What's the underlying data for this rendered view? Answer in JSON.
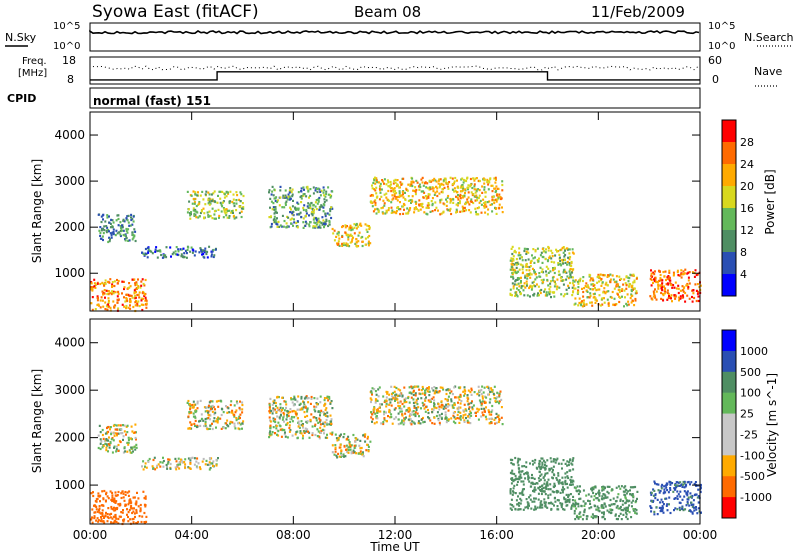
{
  "header": {
    "station": "Syowa East (fitACF)",
    "beam": "Beam 08",
    "date": "11/Feb/2009"
  },
  "top_panels": {
    "nsky_label": "N.Sky",
    "nsky_ticks": [
      "10^5",
      "10^0"
    ],
    "nsearch_label": "N.Search",
    "nsearch_ticks": [
      "10^5",
      "10^0"
    ],
    "freq_label_1": "Freq.",
    "freq_label_2": "[MHz]",
    "freq_ticks": [
      "18",
      "8"
    ],
    "nave_label": "Nave",
    "nave_ticks": [
      "60",
      "0"
    ],
    "cpid_label": "CPID",
    "cpid_value": "normal (fast) 151"
  },
  "colors": {
    "power_scale": [
      "#0000ff",
      "#2a4fb3",
      "#4f8e63",
      "#63b85a",
      "#d8d81e",
      "#ffaa00",
      "#ff6a00",
      "#ff0000"
    ],
    "velocity_scale": [
      "#ff0000",
      "#ff6a00",
      "#ffaa00",
      "#c8c8c8",
      "#c8c8c8",
      "#63b85a",
      "#4f8e63",
      "#2a4fb3",
      "#0000ff"
    ],
    "ground_scatter": "#bcbcbc"
  },
  "chart_data": [
    {
      "type": "heatmap",
      "panel": "power",
      "ylabel": "Slant Range [km]",
      "ylim": [
        180,
        4500
      ],
      "y_ticks": [
        "1000",
        "2000",
        "3000",
        "4000"
      ],
      "x_ticks": [
        "00:00",
        "04:00",
        "08:00",
        "12:00",
        "16:00",
        "20:00",
        "00:00"
      ],
      "colorbar_label": "Power [dB]",
      "colorbar_ticks": [
        "4",
        "8",
        "12",
        "16",
        "20",
        "24",
        "28"
      ],
      "echo_regions": [
        {
          "t": [
            0.0,
            2.2
          ],
          "r": [
            200,
            900
          ],
          "value": 24
        },
        {
          "t": [
            0.3,
            1.8
          ],
          "r": [
            1700,
            2300
          ],
          "value": 10
        },
        {
          "t": [
            2.0,
            5.0
          ],
          "r": [
            1350,
            1600
          ],
          "value": 8
        },
        {
          "t": [
            3.8,
            6.0
          ],
          "r": [
            2200,
            2800
          ],
          "value": 16
        },
        {
          "t": [
            7.0,
            9.5
          ],
          "r": [
            2000,
            2900
          ],
          "value": 12
        },
        {
          "t": [
            9.5,
            11.0
          ],
          "r": [
            1600,
            2100
          ],
          "value": 20
        },
        {
          "t": [
            11.0,
            16.2
          ],
          "r": [
            2300,
            3100
          ],
          "value": 20
        },
        {
          "t": [
            16.5,
            19.0
          ],
          "r": [
            500,
            1600
          ],
          "value": 16
        },
        {
          "t": [
            19.0,
            21.5
          ],
          "r": [
            300,
            1000
          ],
          "value": 20
        },
        {
          "t": [
            22.0,
            24.0
          ],
          "r": [
            400,
            1100
          ],
          "value": 26
        }
      ]
    },
    {
      "type": "heatmap",
      "panel": "velocity",
      "ylabel": "Slant Range [km]",
      "xlabel": "Time UT",
      "ylim": [
        180,
        4500
      ],
      "y_ticks": [
        "1000",
        "2000",
        "3000",
        "4000"
      ],
      "x_ticks": [
        "00:00",
        "04:00",
        "08:00",
        "12:00",
        "16:00",
        "20:00",
        "00:00"
      ],
      "colorbar_label": "Velocity [m s^-1]",
      "colorbar_ticks": [
        "1000",
        "500",
        "100",
        "25",
        "-25",
        "-100",
        "-500",
        "-1000"
      ],
      "echo_regions": [
        {
          "t": [
            0.0,
            2.2
          ],
          "r": [
            200,
            900
          ],
          "value": -300
        },
        {
          "t": [
            0.3,
            1.8
          ],
          "r": [
            1700,
            2300
          ],
          "value": 0
        },
        {
          "t": [
            2.0,
            5.0
          ],
          "r": [
            1350,
            1600
          ],
          "value": 0
        },
        {
          "t": [
            3.8,
            6.0
          ],
          "r": [
            2200,
            2800
          ],
          "value": 0
        },
        {
          "t": [
            7.0,
            9.5
          ],
          "r": [
            2000,
            2900
          ],
          "value": 0
        },
        {
          "t": [
            9.5,
            11.0
          ],
          "r": [
            1600,
            2100
          ],
          "value": 0
        },
        {
          "t": [
            11.0,
            16.2
          ],
          "r": [
            2300,
            3100
          ],
          "value": 0
        },
        {
          "t": [
            16.5,
            19.0
          ],
          "r": [
            500,
            1600
          ],
          "value": 300
        },
        {
          "t": [
            19.0,
            21.5
          ],
          "r": [
            300,
            1000
          ],
          "value": 200
        },
        {
          "t": [
            22.0,
            24.0
          ],
          "r": [
            400,
            1100
          ],
          "value": 600
        }
      ]
    }
  ]
}
